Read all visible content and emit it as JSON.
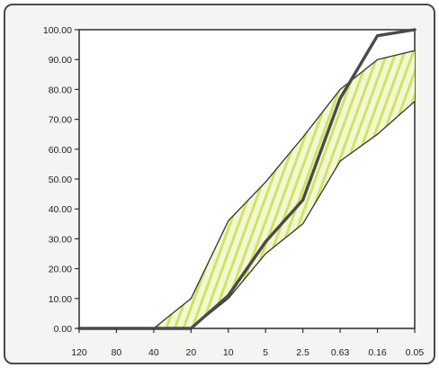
{
  "chart_data": {
    "type": "line",
    "title": "",
    "xlabel": "",
    "ylabel": "",
    "x": [
      "120",
      "80",
      "40",
      "20",
      "10",
      "5",
      "2.5",
      "0.63",
      "0.16",
      "0.05"
    ],
    "ylim": [
      0,
      100
    ],
    "y_tick_labels": [
      "0.00",
      "10.00",
      "20.00",
      "30.00",
      "40.00",
      "50.00",
      "60.00",
      "70.00",
      "80.00",
      "90.00",
      "100.00"
    ],
    "grid": false,
    "legend": "none",
    "series": [
      {
        "role": "upper-envelope",
        "values": [
          0,
          0,
          0,
          10,
          36,
          49,
          64,
          80,
          90,
          93
        ]
      },
      {
        "role": "lower-envelope",
        "values": [
          0,
          0,
          0,
          0,
          10,
          25,
          35,
          56,
          65,
          76
        ]
      },
      {
        "role": "sample-curve",
        "values": [
          0,
          0,
          0,
          0,
          11,
          29,
          43,
          77,
          98,
          100
        ]
      }
    ],
    "colors": {
      "band_hatch": "#cfe36a",
      "band_fill": "#f2f7cf",
      "envelope_line": "#333333",
      "sample_line": "#4a4a4a",
      "plot_background": "#ffffff",
      "frame": "#4a4a4a"
    }
  }
}
